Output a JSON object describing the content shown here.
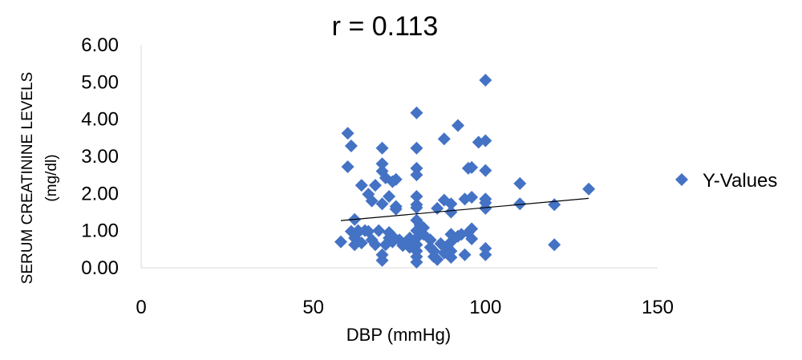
{
  "chart_data": {
    "type": "scatter",
    "title": "r = 0.113",
    "xlabel": "DBP (mmHg)",
    "ylabel_lines": [
      "SERUM CREATININE LEVELS",
      "(mg/dl)"
    ],
    "xlim": [
      0,
      150
    ],
    "ylim": [
      0,
      6
    ],
    "xticks": [
      0,
      50,
      100,
      150
    ],
    "xtick_labels": [
      "0",
      "50",
      "100",
      "150"
    ],
    "yticks": [
      0,
      1,
      2,
      3,
      4,
      5,
      6
    ],
    "ytick_labels": [
      "0.00",
      "1.00",
      "2.00",
      "3.00",
      "4.00",
      "5.00",
      "6.00"
    ],
    "legend_position": "right",
    "marker": "diamond",
    "marker_color": "#4472C4",
    "trendline": {
      "x": [
        58,
        130
      ],
      "y": [
        1.27,
        1.87
      ],
      "color": "#000000"
    },
    "series": [
      {
        "name": "Y-Values",
        "points": [
          [
            60,
            3.62
          ],
          [
            61,
            3.28
          ],
          [
            60,
            2.72
          ],
          [
            62,
            1.3
          ],
          [
            63,
            1.0
          ],
          [
            61,
            0.98
          ],
          [
            58,
            0.7
          ],
          [
            62,
            0.8
          ],
          [
            62,
            0.62
          ],
          [
            64,
            0.67
          ],
          [
            63,
            0.95
          ],
          [
            65,
            1.0
          ],
          [
            64,
            2.22
          ],
          [
            66,
            1.98
          ],
          [
            67,
            1.8
          ],
          [
            68,
            2.22
          ],
          [
            66,
            0.98
          ],
          [
            67,
            0.75
          ],
          [
            68,
            0.62
          ],
          [
            69,
            1.0
          ],
          [
            70,
            3.22
          ],
          [
            70,
            2.8
          ],
          [
            70,
            2.6
          ],
          [
            71,
            2.42
          ],
          [
            70,
            1.72
          ],
          [
            72,
            1.92
          ],
          [
            73,
            2.32
          ],
          [
            74,
            2.38
          ],
          [
            74,
            1.65
          ],
          [
            74,
            1.58
          ],
          [
            70,
            0.2
          ],
          [
            70,
            0.35
          ],
          [
            71,
            0.62
          ],
          [
            72,
            0.8
          ],
          [
            72,
            0.95
          ],
          [
            73,
            0.7
          ],
          [
            73,
            0.85
          ],
          [
            75,
            0.75
          ],
          [
            76,
            0.6
          ],
          [
            77,
            0.65
          ],
          [
            78,
            0.8
          ],
          [
            78,
            0.55
          ],
          [
            80,
            4.17
          ],
          [
            80,
            3.22
          ],
          [
            80,
            2.68
          ],
          [
            80,
            2.5
          ],
          [
            80,
            1.92
          ],
          [
            80,
            1.7
          ],
          [
            80,
            1.62
          ],
          [
            80,
            1.28
          ],
          [
            80,
            1.0
          ],
          [
            80,
            0.8
          ],
          [
            80,
            0.62
          ],
          [
            80,
            0.45
          ],
          [
            80,
            0.3
          ],
          [
            80,
            0.15
          ],
          [
            81,
            1.15
          ],
          [
            82,
            1.08
          ],
          [
            82,
            0.9
          ],
          [
            79,
            0.7
          ],
          [
            84,
            0.75
          ],
          [
            84,
            0.55
          ],
          [
            85,
            0.45
          ],
          [
            85,
            0.3
          ],
          [
            86,
            0.22
          ],
          [
            86,
            1.6
          ],
          [
            87,
            0.65
          ],
          [
            88,
            3.47
          ],
          [
            88,
            1.82
          ],
          [
            88,
            0.4
          ],
          [
            89,
            0.55
          ],
          [
            90,
            1.72
          ],
          [
            90,
            1.5
          ],
          [
            90,
            0.9
          ],
          [
            90,
            0.7
          ],
          [
            90,
            0.45
          ],
          [
            90,
            0.28
          ],
          [
            92,
            3.83
          ],
          [
            92,
            0.85
          ],
          [
            93,
            0.9
          ],
          [
            94,
            1.85
          ],
          [
            94,
            0.35
          ],
          [
            95,
            2.68
          ],
          [
            95,
            0.95
          ],
          [
            96,
            2.7
          ],
          [
            96,
            1.9
          ],
          [
            96,
            1.05
          ],
          [
            96,
            0.78
          ],
          [
            98,
            3.38
          ],
          [
            100,
            5.05
          ],
          [
            100,
            3.42
          ],
          [
            100,
            2.62
          ],
          [
            100,
            1.85
          ],
          [
            100,
            1.75
          ],
          [
            100,
            1.6
          ],
          [
            100,
            0.52
          ],
          [
            100,
            0.35
          ],
          [
            110,
            2.27
          ],
          [
            110,
            1.72
          ],
          [
            120,
            1.7
          ],
          [
            120,
            0.62
          ],
          [
            130,
            2.12
          ]
        ]
      }
    ]
  }
}
